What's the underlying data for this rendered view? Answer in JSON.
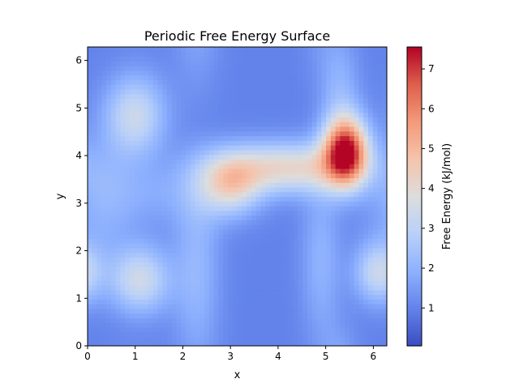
{
  "chart_data": {
    "type": "heatmap",
    "title": "Periodic Free Energy Surface",
    "xlabel": "x",
    "ylabel": "y",
    "xlim": [
      0,
      6.283
    ],
    "ylim": [
      0,
      6.283
    ],
    "x_ticks": [
      0,
      1,
      2,
      3,
      4,
      5,
      6
    ],
    "y_ticks": [
      0,
      1,
      2,
      3,
      4,
      5,
      6
    ],
    "colormap": "coolwarm",
    "grid": false,
    "colorbar": {
      "label": "Free Energy (kJ/mol)",
      "range": [
        0.05,
        7.55
      ],
      "ticks": [
        1,
        2,
        3,
        4,
        5,
        6,
        7
      ]
    },
    "grid_resolution": [
      64,
      64
    ],
    "background_level": 1.0,
    "features": [
      {
        "x": 5.42,
        "y": 4.1,
        "sx": 0.32,
        "sy": 0.5,
        "amplitude": 6.3
      },
      {
        "x": 4.2,
        "y": 3.75,
        "sx": 1.0,
        "sy": 0.38,
        "amplitude": 3.1
      },
      {
        "x": 3.0,
        "y": 3.4,
        "sx": 0.45,
        "sy": 0.45,
        "amplitude": 2.8
      },
      {
        "x": 1.0,
        "y": 4.85,
        "sx": 0.45,
        "sy": 0.6,
        "amplitude": 2.3
      },
      {
        "x": 1.1,
        "y": 1.4,
        "sx": 0.45,
        "sy": 0.5,
        "amplitude": 2.4
      },
      {
        "x": 6.1,
        "y": 1.55,
        "sx": 0.35,
        "sy": 0.45,
        "amplitude": 2.2
      },
      {
        "x": 0.3,
        "y": 3.1,
        "sx": 0.5,
        "sy": 0.9,
        "amplitude": 0.9
      },
      {
        "x": 2.3,
        "y": 1.6,
        "sx": 0.35,
        "sy": 1.5,
        "amplitude": 1.1
      },
      {
        "x": 4.9,
        "y": 1.8,
        "sx": 0.3,
        "sy": 1.2,
        "amplitude": 1.0
      },
      {
        "x": 5.3,
        "y": 5.4,
        "sx": 0.3,
        "sy": 0.8,
        "amplitude": 1.0
      },
      {
        "x": 1.5,
        "y": 3.2,
        "sx": 0.8,
        "sy": 0.5,
        "amplitude": 0.7
      }
    ]
  }
}
